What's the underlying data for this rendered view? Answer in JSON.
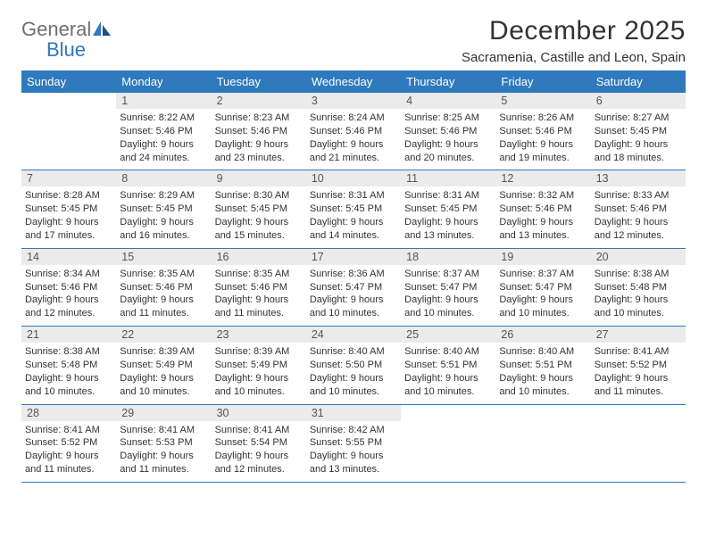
{
  "logo": {
    "word1": "General",
    "word2": "Blue"
  },
  "title": "December 2025",
  "location": "Sacramenia, Castille and Leon, Spain",
  "colors": {
    "header_bg": "#2f79bd",
    "header_fg": "#ffffff",
    "daynum_bg": "#ebebeb",
    "border": "#2f79bd",
    "text": "#333333",
    "logo_gray": "#6f6f6f",
    "logo_blue": "#2f79bd",
    "page_bg": "#ffffff"
  },
  "day_names": [
    "Sunday",
    "Monday",
    "Tuesday",
    "Wednesday",
    "Thursday",
    "Friday",
    "Saturday"
  ],
  "weeks": [
    [
      null,
      {
        "n": "1",
        "sr": "Sunrise: 8:22 AM",
        "ss": "Sunset: 5:46 PM",
        "d1": "Daylight: 9 hours",
        "d2": "and 24 minutes."
      },
      {
        "n": "2",
        "sr": "Sunrise: 8:23 AM",
        "ss": "Sunset: 5:46 PM",
        "d1": "Daylight: 9 hours",
        "d2": "and 23 minutes."
      },
      {
        "n": "3",
        "sr": "Sunrise: 8:24 AM",
        "ss": "Sunset: 5:46 PM",
        "d1": "Daylight: 9 hours",
        "d2": "and 21 minutes."
      },
      {
        "n": "4",
        "sr": "Sunrise: 8:25 AM",
        "ss": "Sunset: 5:46 PM",
        "d1": "Daylight: 9 hours",
        "d2": "and 20 minutes."
      },
      {
        "n": "5",
        "sr": "Sunrise: 8:26 AM",
        "ss": "Sunset: 5:46 PM",
        "d1": "Daylight: 9 hours",
        "d2": "and 19 minutes."
      },
      {
        "n": "6",
        "sr": "Sunrise: 8:27 AM",
        "ss": "Sunset: 5:45 PM",
        "d1": "Daylight: 9 hours",
        "d2": "and 18 minutes."
      }
    ],
    [
      {
        "n": "7",
        "sr": "Sunrise: 8:28 AM",
        "ss": "Sunset: 5:45 PM",
        "d1": "Daylight: 9 hours",
        "d2": "and 17 minutes."
      },
      {
        "n": "8",
        "sr": "Sunrise: 8:29 AM",
        "ss": "Sunset: 5:45 PM",
        "d1": "Daylight: 9 hours",
        "d2": "and 16 minutes."
      },
      {
        "n": "9",
        "sr": "Sunrise: 8:30 AM",
        "ss": "Sunset: 5:45 PM",
        "d1": "Daylight: 9 hours",
        "d2": "and 15 minutes."
      },
      {
        "n": "10",
        "sr": "Sunrise: 8:31 AM",
        "ss": "Sunset: 5:45 PM",
        "d1": "Daylight: 9 hours",
        "d2": "and 14 minutes."
      },
      {
        "n": "11",
        "sr": "Sunrise: 8:31 AM",
        "ss": "Sunset: 5:45 PM",
        "d1": "Daylight: 9 hours",
        "d2": "and 13 minutes."
      },
      {
        "n": "12",
        "sr": "Sunrise: 8:32 AM",
        "ss": "Sunset: 5:46 PM",
        "d1": "Daylight: 9 hours",
        "d2": "and 13 minutes."
      },
      {
        "n": "13",
        "sr": "Sunrise: 8:33 AM",
        "ss": "Sunset: 5:46 PM",
        "d1": "Daylight: 9 hours",
        "d2": "and 12 minutes."
      }
    ],
    [
      {
        "n": "14",
        "sr": "Sunrise: 8:34 AM",
        "ss": "Sunset: 5:46 PM",
        "d1": "Daylight: 9 hours",
        "d2": "and 12 minutes."
      },
      {
        "n": "15",
        "sr": "Sunrise: 8:35 AM",
        "ss": "Sunset: 5:46 PM",
        "d1": "Daylight: 9 hours",
        "d2": "and 11 minutes."
      },
      {
        "n": "16",
        "sr": "Sunrise: 8:35 AM",
        "ss": "Sunset: 5:46 PM",
        "d1": "Daylight: 9 hours",
        "d2": "and 11 minutes."
      },
      {
        "n": "17",
        "sr": "Sunrise: 8:36 AM",
        "ss": "Sunset: 5:47 PM",
        "d1": "Daylight: 9 hours",
        "d2": "and 10 minutes."
      },
      {
        "n": "18",
        "sr": "Sunrise: 8:37 AM",
        "ss": "Sunset: 5:47 PM",
        "d1": "Daylight: 9 hours",
        "d2": "and 10 minutes."
      },
      {
        "n": "19",
        "sr": "Sunrise: 8:37 AM",
        "ss": "Sunset: 5:47 PM",
        "d1": "Daylight: 9 hours",
        "d2": "and 10 minutes."
      },
      {
        "n": "20",
        "sr": "Sunrise: 8:38 AM",
        "ss": "Sunset: 5:48 PM",
        "d1": "Daylight: 9 hours",
        "d2": "and 10 minutes."
      }
    ],
    [
      {
        "n": "21",
        "sr": "Sunrise: 8:38 AM",
        "ss": "Sunset: 5:48 PM",
        "d1": "Daylight: 9 hours",
        "d2": "and 10 minutes."
      },
      {
        "n": "22",
        "sr": "Sunrise: 8:39 AM",
        "ss": "Sunset: 5:49 PM",
        "d1": "Daylight: 9 hours",
        "d2": "and 10 minutes."
      },
      {
        "n": "23",
        "sr": "Sunrise: 8:39 AM",
        "ss": "Sunset: 5:49 PM",
        "d1": "Daylight: 9 hours",
        "d2": "and 10 minutes."
      },
      {
        "n": "24",
        "sr": "Sunrise: 8:40 AM",
        "ss": "Sunset: 5:50 PM",
        "d1": "Daylight: 9 hours",
        "d2": "and 10 minutes."
      },
      {
        "n": "25",
        "sr": "Sunrise: 8:40 AM",
        "ss": "Sunset: 5:51 PM",
        "d1": "Daylight: 9 hours",
        "d2": "and 10 minutes."
      },
      {
        "n": "26",
        "sr": "Sunrise: 8:40 AM",
        "ss": "Sunset: 5:51 PM",
        "d1": "Daylight: 9 hours",
        "d2": "and 10 minutes."
      },
      {
        "n": "27",
        "sr": "Sunrise: 8:41 AM",
        "ss": "Sunset: 5:52 PM",
        "d1": "Daylight: 9 hours",
        "d2": "and 11 minutes."
      }
    ],
    [
      {
        "n": "28",
        "sr": "Sunrise: 8:41 AM",
        "ss": "Sunset: 5:52 PM",
        "d1": "Daylight: 9 hours",
        "d2": "and 11 minutes."
      },
      {
        "n": "29",
        "sr": "Sunrise: 8:41 AM",
        "ss": "Sunset: 5:53 PM",
        "d1": "Daylight: 9 hours",
        "d2": "and 11 minutes."
      },
      {
        "n": "30",
        "sr": "Sunrise: 8:41 AM",
        "ss": "Sunset: 5:54 PM",
        "d1": "Daylight: 9 hours",
        "d2": "and 12 minutes."
      },
      {
        "n": "31",
        "sr": "Sunrise: 8:42 AM",
        "ss": "Sunset: 5:55 PM",
        "d1": "Daylight: 9 hours",
        "d2": "and 13 minutes."
      },
      null,
      null,
      null
    ]
  ]
}
